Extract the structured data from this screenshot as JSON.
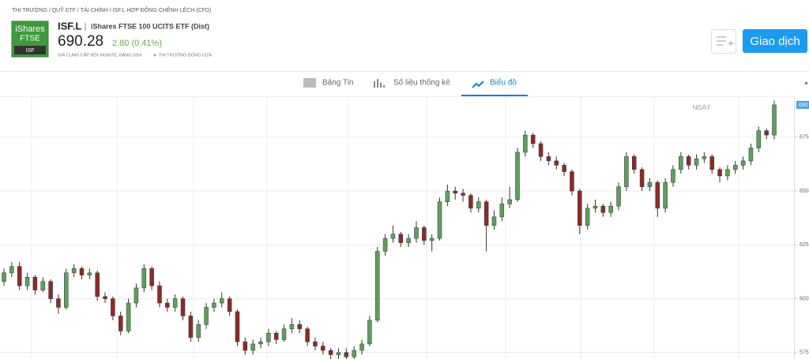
{
  "header": {
    "breadcrumb": "THỊ TRƯỜNG / QUỸ ETF / TÀI CHÍNH / ISF.L HỢP ĐỒNG CHÊNH LỆCH (CFD)",
    "logo": [
      "iShares",
      "FTSE",
      "ISF"
    ],
    "ticker": "ISF.L",
    "name": "iShares FTSE 100 UCITS ETF (Dist)",
    "price": "690.28",
    "change": "2.80 (0.41%)",
    "source": "GIÁ CUNG CẤP BỞI XIGNITE, BẰNG GBX",
    "status": "THỊ TRƯỜNG ĐÓNG CỬA",
    "button": "Giao dịch"
  },
  "tabs": [
    "Bảng Tin",
    "Số liệu thống kê",
    "Biểu đồ"
  ],
  "chart_data": {
    "type": "candlestick",
    "period_label": "NGÀY",
    "price_tag": 690,
    "up_color": "#5f9f5f",
    "down_color": "#8b2b2b",
    "ylim": [
      572,
      694
    ],
    "yticks": [
      575,
      600,
      625,
      650,
      675
    ],
    "grid": true,
    "ohlc": [
      [
        608,
        614,
        606,
        612
      ],
      [
        612,
        617,
        610,
        615
      ],
      [
        615,
        617,
        604,
        606
      ],
      [
        606,
        612,
        604,
        610
      ],
      [
        610,
        611,
        602,
        604
      ],
      [
        604,
        610,
        603,
        608
      ],
      [
        608,
        609,
        598,
        600
      ],
      [
        600,
        602,
        593,
        596
      ],
      [
        596,
        614,
        595,
        612
      ],
      [
        612,
        616,
        610,
        614
      ],
      [
        614,
        615,
        609,
        611
      ],
      [
        611,
        614,
        609,
        612
      ],
      [
        612,
        613,
        599,
        601
      ],
      [
        601,
        603,
        598,
        600
      ],
      [
        600,
        601,
        590,
        592
      ],
      [
        592,
        594,
        583,
        585
      ],
      [
        585,
        600,
        584,
        598
      ],
      [
        598,
        607,
        596,
        605
      ],
      [
        605,
        616,
        603,
        614
      ],
      [
        614,
        615,
        604,
        606
      ],
      [
        606,
        608,
        596,
        598
      ],
      [
        598,
        600,
        594,
        596
      ],
      [
        596,
        602,
        594,
        600
      ],
      [
        600,
        601,
        590,
        592
      ],
      [
        592,
        594,
        580,
        582
      ],
      [
        582,
        590,
        580,
        588
      ],
      [
        588,
        598,
        586,
        596
      ],
      [
        596,
        600,
        594,
        598
      ],
      [
        598,
        603,
        596,
        600
      ],
      [
        600,
        601,
        592,
        594
      ],
      [
        594,
        595,
        578,
        580
      ],
      [
        580,
        582,
        574,
        576
      ],
      [
        576,
        581,
        574,
        579
      ],
      [
        579,
        582,
        577,
        580
      ],
      [
        580,
        586,
        578,
        584
      ],
      [
        584,
        585,
        579,
        581
      ],
      [
        581,
        588,
        580,
        586
      ],
      [
        586,
        591,
        584,
        588
      ],
      [
        588,
        590,
        584,
        586
      ],
      [
        586,
        587,
        578,
        580
      ],
      [
        580,
        582,
        576,
        578
      ],
      [
        578,
        580,
        574,
        576
      ],
      [
        576,
        577,
        572,
        574
      ],
      [
        574,
        577,
        572,
        575
      ],
      [
        575,
        577,
        572,
        573
      ],
      [
        573,
        578,
        572,
        576
      ],
      [
        576,
        581,
        574,
        579
      ],
      [
        579,
        592,
        578,
        590
      ],
      [
        590,
        624,
        589,
        622
      ],
      [
        622,
        630,
        620,
        628
      ],
      [
        628,
        634,
        626,
        630
      ],
      [
        630,
        631,
        624,
        626
      ],
      [
        626,
        630,
        624,
        628
      ],
      [
        628,
        636,
        626,
        633
      ],
      [
        633,
        634,
        625,
        627
      ],
      [
        627,
        630,
        622,
        628
      ],
      [
        628,
        647,
        627,
        645
      ],
      [
        645,
        653,
        643,
        650
      ],
      [
        650,
        652,
        646,
        649
      ],
      [
        649,
        651,
        645,
        648
      ],
      [
        648,
        649,
        640,
        642
      ],
      [
        642,
        647,
        640,
        645
      ],
      [
        645,
        646,
        622,
        634
      ],
      [
        634,
        641,
        632,
        638
      ],
      [
        638,
        647,
        636,
        644
      ],
      [
        644,
        652,
        642,
        646
      ],
      [
        646,
        670,
        645,
        668
      ],
      [
        668,
        678,
        666,
        676
      ],
      [
        676,
        677,
        670,
        672
      ],
      [
        672,
        673,
        664,
        666
      ],
      [
        666,
        668,
        662,
        664
      ],
      [
        664,
        666,
        660,
        662
      ],
      [
        662,
        663,
        657,
        659
      ],
      [
        659,
        660,
        648,
        650
      ],
      [
        650,
        651,
        630,
        634
      ],
      [
        634,
        644,
        632,
        642
      ],
      [
        642,
        646,
        640,
        643
      ],
      [
        643,
        644,
        638,
        640
      ],
      [
        640,
        645,
        638,
        643
      ],
      [
        643,
        654,
        641,
        652
      ],
      [
        652,
        668,
        650,
        666
      ],
      [
        666,
        667,
        658,
        660
      ],
      [
        660,
        661,
        650,
        652
      ],
      [
        652,
        656,
        650,
        654
      ],
      [
        654,
        655,
        638,
        642
      ],
      [
        642,
        656,
        640,
        654
      ],
      [
        654,
        662,
        652,
        660
      ],
      [
        660,
        668,
        658,
        666
      ],
      [
        666,
        667,
        660,
        662
      ],
      [
        662,
        667,
        660,
        665
      ],
      [
        665,
        668,
        663,
        666
      ],
      [
        666,
        667,
        658,
        660
      ],
      [
        660,
        661,
        654,
        657
      ],
      [
        657,
        662,
        655,
        660
      ],
      [
        660,
        664,
        658,
        662
      ],
      [
        662,
        666,
        660,
        664
      ],
      [
        664,
        672,
        662,
        670
      ],
      [
        670,
        680,
        668,
        678
      ],
      [
        678,
        679,
        674,
        676
      ],
      [
        676,
        692,
        674,
        690
      ]
    ]
  }
}
